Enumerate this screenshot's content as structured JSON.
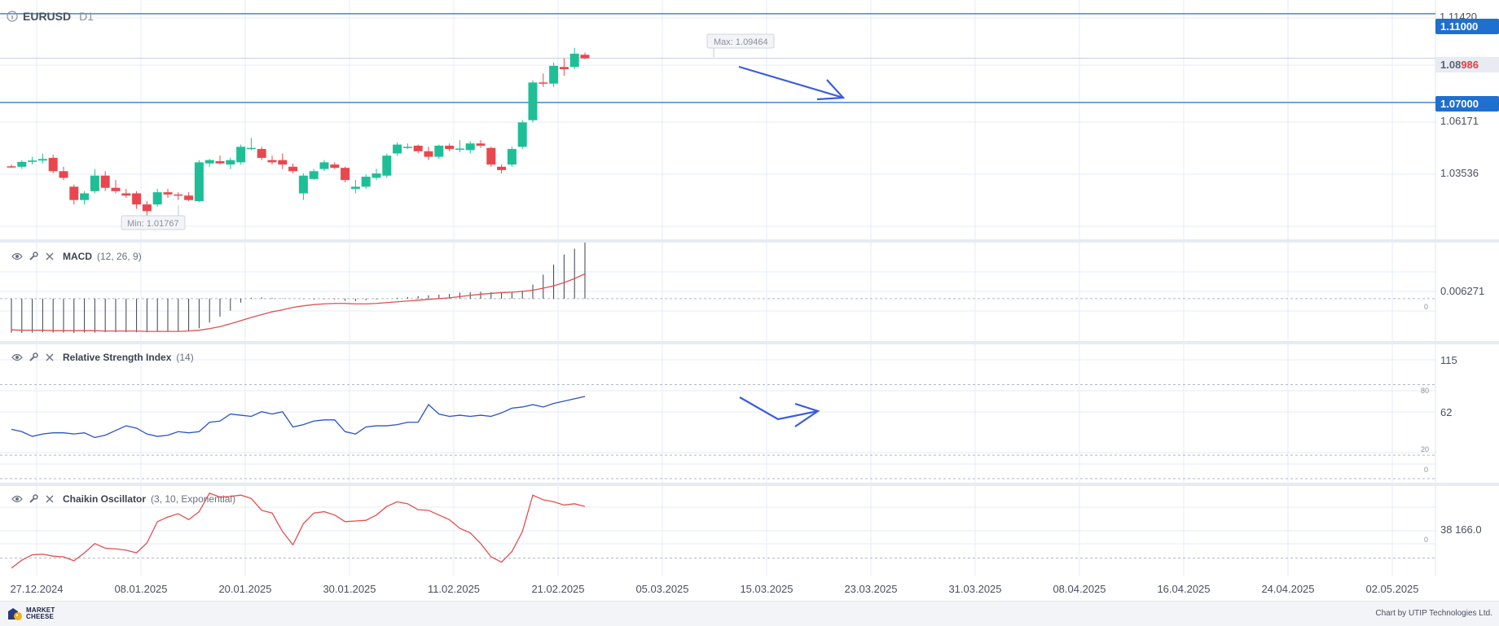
{
  "symbol": "EURUSD",
  "timeframe": "D1",
  "price_axis": {
    "top_partial_label": "1.11420",
    "labels": [
      "1.06171",
      "1.03536"
    ],
    "current_price_main": "1.08",
    "current_price_accent": "986",
    "levels": [
      {
        "label": "1.11000",
        "value": 1.11
      },
      {
        "label": "1.07000",
        "value": 1.07
      }
    ]
  },
  "markers": {
    "max_label": "Max: 1.09464",
    "min_label": "Min: 1.01767"
  },
  "panels": {
    "macd": {
      "name": "MACD",
      "params": "(12, 26, 9)",
      "axis_value": "0.006271",
      "zero_label": "0"
    },
    "rsi": {
      "name": "Relative Strength Index",
      "params": "(14)",
      "axis_top": "115",
      "axis_mid": "62",
      "level_80": "80",
      "level_20": "20",
      "level_0": "0"
    },
    "chaikin": {
      "name": "Chaikin Oscillator",
      "params": "(3, 10, Exponential)",
      "axis_value": "38 166.0",
      "zero_label": "0"
    }
  },
  "x_axis_labels": [
    "27.12.2024",
    "08.01.2025",
    "20.01.2025",
    "30.01.2025",
    "11.02.2025",
    "21.02.2025",
    "05.03.2025",
    "15.03.2025",
    "23.03.2025",
    "31.03.2025",
    "08.04.2025",
    "16.04.2025",
    "24.04.2025",
    "02.05.2025"
  ],
  "footer": {
    "logo_line1": "MARKET",
    "logo_line2": "CHEESE",
    "credit": "Chart by UTIP Technologies Ltd."
  },
  "colors": {
    "bull": "#1ebf97",
    "bear": "#e9474e",
    "level_line": "#1f6fce",
    "level_badge": "#1f6fce",
    "macd_line": "#e05050",
    "rsi_line": "#2a52c8",
    "chaikin_line": "#e05050",
    "arrow": "#3a5be0",
    "grid": "#e4ebf7"
  },
  "chart_data": {
    "type": "candlestick",
    "candles": [
      {
        "o": 1.0412,
        "h": 1.042,
        "l": 1.0405,
        "c": 1.041
      },
      {
        "o": 1.041,
        "h": 1.044,
        "l": 1.04,
        "c": 1.0432
      },
      {
        "o": 1.0432,
        "h": 1.0455,
        "l": 1.042,
        "c": 1.0438
      },
      {
        "o": 1.0438,
        "h": 1.047,
        "l": 1.0425,
        "c": 1.0445
      },
      {
        "o": 1.045,
        "h": 1.0465,
        "l": 1.038,
        "c": 1.039
      },
      {
        "o": 1.039,
        "h": 1.041,
        "l": 1.035,
        "c": 1.036
      },
      {
        "o": 1.032,
        "h": 1.033,
        "l": 1.024,
        "c": 1.026
      },
      {
        "o": 1.026,
        "h": 1.03,
        "l": 1.024,
        "c": 1.029
      },
      {
        "o": 1.03,
        "h": 1.04,
        "l": 1.029,
        "c": 1.037
      },
      {
        "o": 1.037,
        "h": 1.039,
        "l": 1.03,
        "c": 1.0315
      },
      {
        "o": 1.0315,
        "h": 1.035,
        "l": 1.029,
        "c": 1.03
      },
      {
        "o": 1.029,
        "h": 1.031,
        "l": 1.027,
        "c": 1.028
      },
      {
        "o": 1.029,
        "h": 1.03,
        "l": 1.022,
        "c": 1.024
      },
      {
        "o": 1.024,
        "h": 1.0255,
        "l": 1.0177,
        "c": 1.021
      },
      {
        "o": 1.024,
        "h": 1.031,
        "l": 1.023,
        "c": 1.0295
      },
      {
        "o": 1.0295,
        "h": 1.031,
        "l": 1.027,
        "c": 1.0285
      },
      {
        "o": 1.0285,
        "h": 1.0295,
        "l": 1.026,
        "c": 1.028
      },
      {
        "o": 1.028,
        "h": 1.0295,
        "l": 1.0255,
        "c": 1.026
      },
      {
        "o": 1.0255,
        "h": 1.044,
        "l": 1.025,
        "c": 1.043
      },
      {
        "o": 1.0425,
        "h": 1.0445,
        "l": 1.041,
        "c": 1.044
      },
      {
        "o": 1.0435,
        "h": 1.046,
        "l": 1.042,
        "c": 1.0425
      },
      {
        "o": 1.042,
        "h": 1.045,
        "l": 1.04,
        "c": 1.044
      },
      {
        "o": 1.043,
        "h": 1.051,
        "l": 1.042,
        "c": 1.05
      },
      {
        "o": 1.0495,
        "h": 1.054,
        "l": 1.0485,
        "c": 1.0495
      },
      {
        "o": 1.049,
        "h": 1.05,
        "l": 1.044,
        "c": 1.045
      },
      {
        "o": 1.044,
        "h": 1.046,
        "l": 1.042,
        "c": 1.043
      },
      {
        "o": 1.044,
        "h": 1.047,
        "l": 1.04,
        "c": 1.042
      },
      {
        "o": 1.041,
        "h": 1.0425,
        "l": 1.038,
        "c": 1.039
      },
      {
        "o": 1.029,
        "h": 1.038,
        "l": 1.026,
        "c": 1.037
      },
      {
        "o": 1.0355,
        "h": 1.04,
        "l": 1.035,
        "c": 1.039
      },
      {
        "o": 1.04,
        "h": 1.044,
        "l": 1.039,
        "c": 1.043
      },
      {
        "o": 1.042,
        "h": 1.043,
        "l": 1.04,
        "c": 1.0405
      },
      {
        "o": 1.0405,
        "h": 1.041,
        "l": 1.034,
        "c": 1.035
      },
      {
        "o": 1.031,
        "h": 1.035,
        "l": 1.029,
        "c": 1.032
      },
      {
        "o": 1.032,
        "h": 1.0375,
        "l": 1.031,
        "c": 1.0365
      },
      {
        "o": 1.036,
        "h": 1.04,
        "l": 1.035,
        "c": 1.038
      },
      {
        "o": 1.037,
        "h": 1.047,
        "l": 1.036,
        "c": 1.046
      },
      {
        "o": 1.047,
        "h": 1.052,
        "l": 1.046,
        "c": 1.051
      },
      {
        "o": 1.05,
        "h": 1.0515,
        "l": 1.049,
        "c": 1.05
      },
      {
        "o": 1.0505,
        "h": 1.051,
        "l": 1.047,
        "c": 1.048
      },
      {
        "o": 1.048,
        "h": 1.05,
        "l": 1.044,
        "c": 1.0455
      },
      {
        "o": 1.0455,
        "h": 1.051,
        "l": 1.0445,
        "c": 1.0505
      },
      {
        "o": 1.0505,
        "h": 1.0515,
        "l": 1.048,
        "c": 1.049
      },
      {
        "o": 1.049,
        "h": 1.053,
        "l": 1.0475,
        "c": 1.0492
      },
      {
        "o": 1.0485,
        "h": 1.0525,
        "l": 1.047,
        "c": 1.0515
      },
      {
        "o": 1.0515,
        "h": 1.053,
        "l": 1.0495,
        "c": 1.0505
      },
      {
        "o": 1.0495,
        "h": 1.05,
        "l": 1.041,
        "c": 1.042
      },
      {
        "o": 1.041,
        "h": 1.042,
        "l": 1.038,
        "c": 1.0395
      },
      {
        "o": 1.042,
        "h": 1.05,
        "l": 1.041,
        "c": 1.049
      },
      {
        "o": 1.05,
        "h": 1.062,
        "l": 1.049,
        "c": 1.061
      },
      {
        "o": 1.062,
        "h": 1.08,
        "l": 1.061,
        "c": 1.079
      },
      {
        "o": 1.079,
        "h": 1.083,
        "l": 1.077,
        "c": 1.0785
      },
      {
        "o": 1.0785,
        "h": 1.088,
        "l": 1.077,
        "c": 1.0865
      },
      {
        "o": 1.086,
        "h": 1.09,
        "l": 1.082,
        "c": 1.085
      },
      {
        "o": 1.086,
        "h": 1.0946,
        "l": 1.085,
        "c": 1.092
      },
      {
        "o": 1.0915,
        "h": 1.0925,
        "l": 1.0895,
        "c": 1.0899
      }
    ],
    "macd_histogram": [
      -0.0085,
      -0.0086,
      -0.0085,
      -0.0084,
      -0.0085,
      -0.0085,
      -0.0086,
      -0.0085,
      -0.0085,
      -0.0084,
      -0.0084,
      -0.0084,
      -0.0084,
      -0.0084,
      -0.0083,
      -0.0083,
      -0.0082,
      -0.008,
      -0.0074,
      -0.006,
      -0.0045,
      -0.003,
      -0.001,
      0.0002,
      0.0003,
      0.0002,
      0.0001,
      0.0,
      -0.0001,
      -0.0002,
      -0.0001,
      -0.0002,
      -0.0005,
      -0.0006,
      -0.0004,
      -0.0002,
      0.0,
      0.0002,
      0.0004,
      0.0006,
      0.0008,
      0.001,
      0.0012,
      0.0015,
      0.0016,
      0.0017,
      0.0016,
      0.0015,
      0.0016,
      0.002,
      0.0035,
      0.006,
      0.0085,
      0.011,
      0.0125,
      0.014
    ],
    "macd_signal": [
      -0.0078,
      -0.0079,
      -0.0079,
      -0.0079,
      -0.008,
      -0.008,
      -0.008,
      -0.008,
      -0.008,
      -0.0081,
      -0.0081,
      -0.0081,
      -0.0081,
      -0.0082,
      -0.0082,
      -0.0082,
      -0.0082,
      -0.0081,
      -0.0079,
      -0.0075,
      -0.007,
      -0.0063,
      -0.0055,
      -0.0047,
      -0.004,
      -0.0033,
      -0.0028,
      -0.0022,
      -0.0018,
      -0.0015,
      -0.0013,
      -0.0012,
      -0.0012,
      -0.0013,
      -0.0013,
      -0.0012,
      -0.001,
      -0.0008,
      -0.0006,
      -0.0004,
      -0.0002,
      0.0,
      0.0002,
      0.0005,
      0.0008,
      0.0011,
      0.0013,
      0.0015,
      0.0016,
      0.0018,
      0.0021,
      0.0026,
      0.0032,
      0.004,
      0.005,
      0.0062
    ],
    "rsi": [
      42,
      40,
      36,
      38,
      39,
      39,
      38,
      39,
      35,
      37,
      41,
      45,
      43,
      38,
      36,
      37,
      40,
      39,
      40,
      48,
      49,
      55,
      54,
      53,
      57,
      55,
      57,
      44,
      46,
      49,
      50,
      50,
      40,
      38,
      44,
      45,
      45,
      46,
      48,
      48,
      63,
      55,
      53,
      54,
      53,
      54,
      53,
      56,
      60,
      61,
      63,
      61,
      64,
      66,
      68,
      70
    ],
    "chaikin": [
      -15000,
      -3000,
      5000,
      6000,
      3000,
      2000,
      -4000,
      8000,
      22000,
      15000,
      14000,
      12000,
      8000,
      23000,
      55000,
      62000,
      67000,
      58000,
      70000,
      98000,
      92000,
      93000,
      95000,
      90000,
      72000,
      68000,
      40000,
      20000,
      52000,
      68000,
      70000,
      65000,
      55000,
      56000,
      57000,
      65000,
      78000,
      85000,
      82000,
      73000,
      72000,
      65000,
      58000,
      45000,
      38000,
      22000,
      2000,
      -6000,
      10000,
      40000,
      95000,
      88000,
      85000,
      80000,
      82000,
      78000
    ],
    "price_range": [
      1.009,
      1.1162
    ],
    "rsi_range": [
      0,
      115
    ],
    "macd_range": [
      -0.01,
      0.014
    ],
    "chaikin_range": [
      -25000,
      110000
    ]
  }
}
